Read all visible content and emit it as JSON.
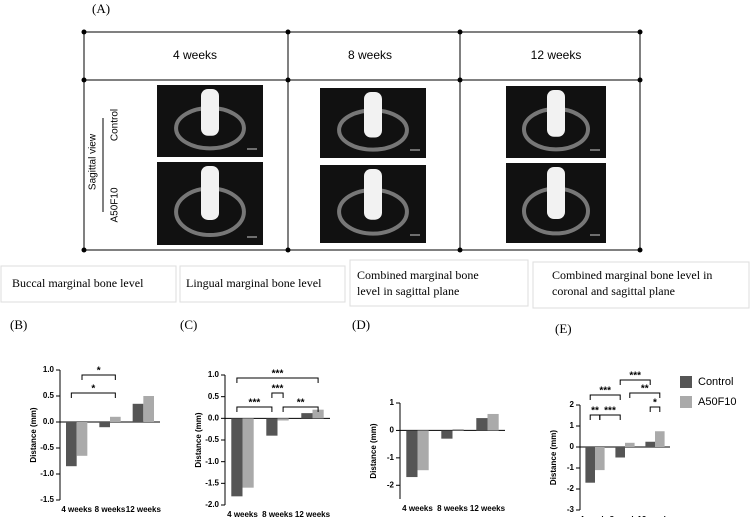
{
  "figure_label": "(A)",
  "panel_a": {
    "columns": [
      "4 weeks",
      "8 weeks",
      "12 weeks"
    ],
    "rows": [
      "Control",
      "A50F10"
    ],
    "view": "Sagittal view"
  },
  "chart_data": [
    {
      "type": "bar",
      "panel": "(B)",
      "title": "Buccal marginal bone level",
      "ylabel": "Distance (mm)",
      "categories": [
        "4 weeks",
        "8 weeks",
        "12 weeks"
      ],
      "series": [
        {
          "color": "#555555",
          "values": [
            -0.85,
            -0.1,
            0.35
          ]
        },
        {
          "color": "#aaaaaa",
          "values": [
            -0.65,
            0.1,
            0.5
          ]
        }
      ],
      "ylim": [
        -1.5,
        1.0
      ],
      "yticks": [
        -1.5,
        {
          "value": -1.0,
          "label": "-1.0"
        },
        -0.5,
        {
          "value": 0.0,
          "label": "0.0"
        },
        0.5,
        {
          "value": 1.0,
          "label": "1.0"
        }
      ],
      "annotations": [
        "*",
        "*"
      ],
      "legend": false
    },
    {
      "type": "bar",
      "panel": "(C)",
      "title": "Lingual marginal bone level",
      "ylabel": "Distance (mm)",
      "categories": [
        "4 weeks",
        "8 weeks",
        "12 weeks"
      ],
      "series": [
        {
          "color": "#555555",
          "values": [
            -1.8,
            -0.4,
            0.12
          ]
        },
        {
          "color": "#aaaaaa",
          "values": [
            -1.6,
            -0.05,
            0.2
          ]
        }
      ],
      "ylim": [
        -2.0,
        1.0
      ],
      "yticks": [
        {
          "value": -2.0,
          "label": "-2.0"
        },
        -1.5,
        {
          "value": -1.0,
          "label": "-1.0"
        },
        -0.5,
        {
          "value": 0.0,
          "label": "0.0"
        },
        0.5,
        {
          "value": 1.0,
          "label": "1.0"
        }
      ],
      "annotations": [
        "***",
        "***",
        "***",
        "**"
      ],
      "legend": false
    },
    {
      "type": "bar",
      "panel": "(D)",
      "title": "Combined marginal bone level in sagittal plane",
      "ylabel": "Distance (mm)",
      "categories": [
        "4 weeks",
        "8 weeks",
        "12 weeks"
      ],
      "series": [
        {
          "color": "#555555",
          "values": [
            -1.7,
            -0.3,
            0.45
          ]
        },
        {
          "color": "#aaaaaa",
          "values": [
            -1.45,
            0.05,
            0.6
          ]
        }
      ],
      "ylim": [
        -2.5,
        1
      ],
      "yticks": [
        -2,
        -1,
        0,
        1
      ],
      "annotations": [],
      "legend": false
    },
    {
      "type": "bar",
      "panel": "(E)",
      "title": "Combined marginal bone level in coronal and sagittal plane",
      "ylabel": "Distance (mm)",
      "categories": [
        "4 weeks",
        "8 weeks",
        "12 weeks"
      ],
      "series": [
        {
          "name": "Control",
          "color": "#555555",
          "values": [
            -1.7,
            -0.5,
            0.25
          ]
        },
        {
          "name": "A50F10",
          "color": "#aaaaaa",
          "values": [
            -1.1,
            0.2,
            0.75
          ]
        }
      ],
      "ylim": [
        -3,
        2
      ],
      "yticks": [
        -3,
        -2,
        -1,
        0,
        1,
        2
      ],
      "annotations": [
        "**",
        "***",
        "***",
        "***",
        "**",
        "*"
      ],
      "legend": true
    }
  ]
}
